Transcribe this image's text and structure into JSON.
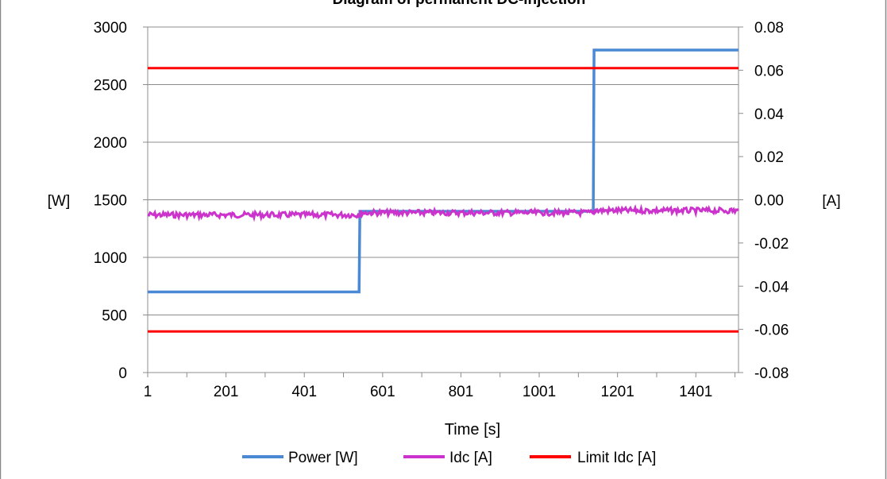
{
  "chart_data": {
    "type": "line",
    "title": "Diagram of permanent DC-injection",
    "xlabel": "Time [s]",
    "ylabel_left": "[W]",
    "ylabel_right": "[A]",
    "xlim": [
      1,
      1510
    ],
    "ylim_left": [
      0,
      3000
    ],
    "ylim_right": [
      -0.08,
      0.08
    ],
    "x_ticks": [
      "1",
      "201",
      "401",
      "601",
      "801",
      "1001",
      "1201",
      "1401"
    ],
    "y_left_ticks": [
      "0",
      "500",
      "1000",
      "1500",
      "2000",
      "2500",
      "3000"
    ],
    "y_right_ticks": [
      "-0.08",
      "-0.06",
      "-0.04",
      "-0.02",
      "0.00",
      "0.02",
      "0.04",
      "0.06",
      "0.08"
    ],
    "grid": true,
    "legend_position": "bottom",
    "series": [
      {
        "name": "Power [W]",
        "axis": "left",
        "color": "#4a8ad4",
        "x": [
          1,
          541,
          543,
          1139,
          1141,
          1510
        ],
        "y": [
          700,
          700,
          1400,
          1400,
          2800,
          2800
        ]
      },
      {
        "name": "Idc [A]",
        "axis": "right",
        "color": "#cc33cc",
        "x": [
          1,
          541,
          545,
          1139,
          1143,
          1510
        ],
        "y": [
          -0.007,
          -0.007,
          -0.006,
          -0.006,
          -0.005,
          -0.005
        ]
      },
      {
        "name": "Limit Idc [A]",
        "axis": "right",
        "color": "#ff0000",
        "x": [
          1,
          1510
        ],
        "y": [
          0.061,
          0.061
        ]
      },
      {
        "name": "",
        "axis": "right",
        "color": "#ff0000",
        "x": [
          1,
          1510
        ],
        "y": [
          -0.061,
          -0.061
        ]
      }
    ]
  }
}
